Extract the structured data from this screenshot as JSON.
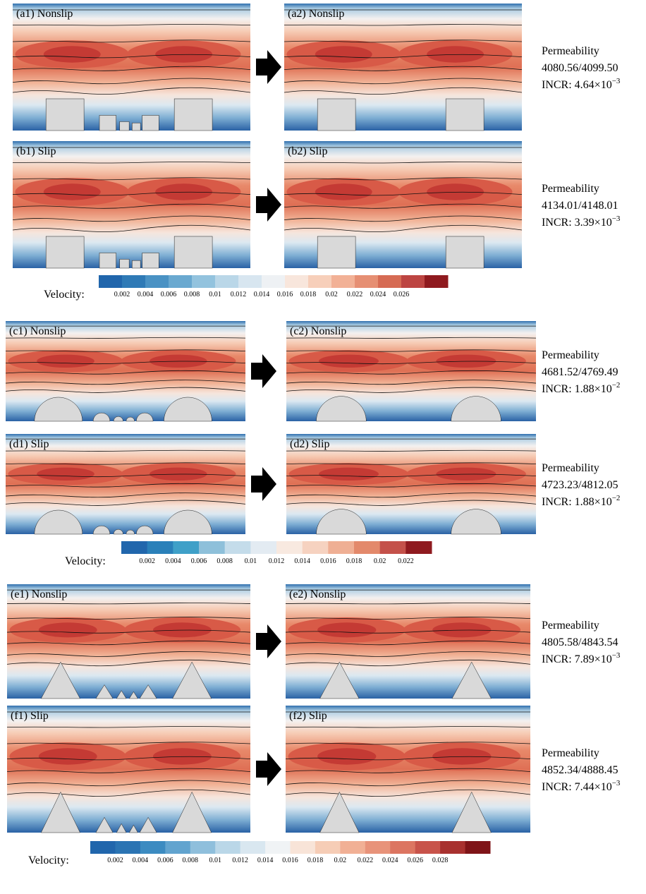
{
  "groups": [
    {
      "rows": [
        {
          "left": "(a1) Nonslip",
          "right": "(a2) Nonslip",
          "permeability": {
            "label": "Permeability",
            "values": "4080.56/4099.50",
            "incr": "INCR: 4.64×10",
            "exponent": "−3"
          }
        },
        {
          "left": "(b1) Slip",
          "right": "(b2) Slip",
          "permeability": {
            "label": "Permeability",
            "values": "4134.01/4148.01",
            "incr": "INCR: 3.39×10",
            "exponent": "−3"
          }
        }
      ],
      "colorbar": {
        "label": "Velocity:",
        "ticks": [
          0.002,
          0.004,
          0.006,
          0.008,
          0.01,
          0.012,
          0.014,
          0.016,
          0.018,
          0.02,
          0.022,
          0.024,
          0.026
        ],
        "colors": [
          "#2166ac",
          "#2f7ab6",
          "#4a92c4",
          "#6aa9d0",
          "#93c3de",
          "#bad7e8",
          "#d8e6f0",
          "#eef1f4",
          "#f8e6dc",
          "#f7cfba",
          "#f2b196",
          "#e68f73",
          "#d66b54",
          "#bd4542",
          "#8f1a1f"
        ]
      }
    },
    {
      "rows": [
        {
          "left": "(c1) Nonslip",
          "right": "(c2) Nonslip",
          "permeability": {
            "label": "Permeability",
            "values": "4681.52/4769.49",
            "incr": "INCR: 1.88×10",
            "exponent": "−2"
          }
        },
        {
          "left": "(d1) Slip",
          "right": "(d2) Slip",
          "permeability": {
            "label": "Permeability",
            "values": "4723.23/4812.05",
            "incr": "INCR: 1.88×10",
            "exponent": "−2"
          }
        }
      ],
      "colorbar": {
        "label": "Velocity:",
        "ticks": [
          0.002,
          0.004,
          0.006,
          0.008,
          0.01,
          0.012,
          0.014,
          0.016,
          0.018,
          0.02,
          0.022
        ],
        "colors": [
          "#2166ac",
          "#2a80b9",
          "#3fa0c8",
          "#8ec0da",
          "#c4dcea",
          "#e3ebf2",
          "#f8e9e0",
          "#f6d2c0",
          "#efaf94",
          "#e3896b",
          "#c4514a",
          "#8f1a1f"
        ]
      }
    },
    {
      "rows": [
        {
          "left": "(e1) Nonslip",
          "right": "(e2) Nonslip",
          "permeability": {
            "label": "Permeability",
            "values": "4805.58/4843.54",
            "incr": "INCR: 7.89×10",
            "exponent": "−3"
          }
        },
        {
          "left": "(f1) Slip",
          "right": "(f2) Slip",
          "permeability": {
            "label": "Permeability",
            "values": "4852.34/4888.45",
            "incr": "INCR: 7.44×10",
            "exponent": "−3"
          }
        }
      ],
      "colorbar": {
        "label": "Velocity:",
        "ticks": [
          0.002,
          0.004,
          0.006,
          0.008,
          0.01,
          0.012,
          0.014,
          0.016,
          0.018,
          0.02,
          0.022,
          0.024,
          0.026,
          0.028
        ],
        "colors": [
          "#2166ac",
          "#2b74b3",
          "#3c8bc1",
          "#62a4cf",
          "#8fbfdc",
          "#bad7e8",
          "#d9e7f0",
          "#f0f3f5",
          "#f8e4d8",
          "#f6cdb6",
          "#f1b095",
          "#e8937a",
          "#dc7561",
          "#c8534a",
          "#a8312f",
          "#7f1418"
        ]
      }
    }
  ]
}
